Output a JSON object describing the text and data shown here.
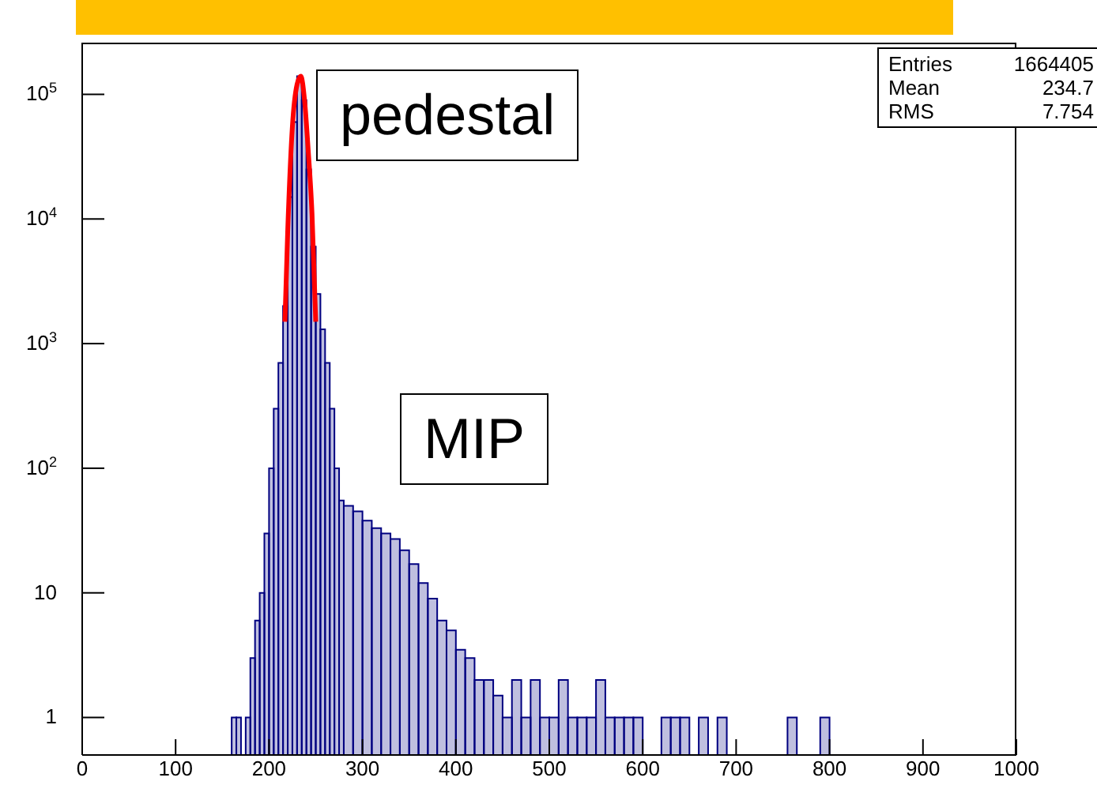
{
  "chart_data": {
    "type": "histogram",
    "log": "y",
    "xlim": [
      0,
      1000
    ],
    "xticks": [
      0,
      100,
      200,
      300,
      400,
      500,
      600,
      700,
      800,
      900,
      1000
    ],
    "ylim": [
      0.5,
      260000
    ],
    "yticks": [
      1,
      10,
      {
        "value": 100,
        "label": "10$^{2}$"
      },
      {
        "value": 1000,
        "label": "10$^{3}$"
      },
      {
        "value": 10000,
        "label": "10$^{4}$"
      },
      {
        "value": 100000,
        "label": "10$^{5}$"
      }
    ],
    "series": [
      {
        "color": "#000080",
        "bins": [
          160,
          165,
          170,
          175,
          180,
          185,
          190,
          195,
          200,
          205,
          210,
          215,
          220,
          225,
          230,
          235,
          240,
          245,
          250,
          255,
          260,
          265,
          270,
          275,
          280,
          290,
          300,
          310,
          320,
          330,
          340,
          350,
          360,
          370,
          380,
          390,
          400,
          410,
          420,
          430,
          440,
          450,
          460,
          470,
          480,
          490,
          500,
          510,
          520,
          530,
          540,
          550,
          560,
          570,
          580,
          590,
          600,
          620,
          630,
          640,
          650,
          660,
          670,
          680,
          690,
          755,
          765,
          790,
          800
        ],
        "values": [
          1,
          1,
          null,
          1,
          3,
          6,
          10,
          30,
          100,
          300,
          700,
          2000,
          15000,
          60000,
          140000,
          90000,
          25000,
          6000,
          2500,
          1300,
          700,
          300,
          100,
          55,
          50,
          45,
          38,
          33,
          30,
          27,
          22,
          17,
          12,
          9,
          6,
          5,
          3.5,
          3,
          2,
          2,
          1.5,
          1,
          2,
          1,
          2,
          1,
          1,
          2,
          1,
          1,
          1,
          2,
          1,
          1,
          1,
          1,
          null,
          1,
          1,
          1,
          null,
          1,
          null,
          1,
          null,
          1,
          null,
          1
        ]
      },
      {
        "type": "line",
        "color": "#ff0000",
        "x": [
          217,
          220,
          225,
          230,
          234,
          238,
          242,
          246,
          250
        ],
        "values": [
          1500,
          8000,
          55000,
          120000,
          140000,
          90000,
          35000,
          11000,
          1500
        ]
      }
    ],
    "annotations": [
      "pedestal",
      "MIP",
      "Entries 1664405",
      "Mean 234.7",
      "RMS 7.754"
    ]
  }
}
